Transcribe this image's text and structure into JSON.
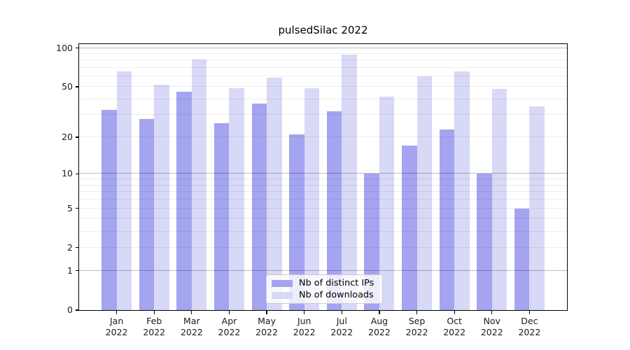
{
  "title": "pulsedSilac 2022",
  "chart_data": {
    "type": "bar",
    "title": "pulsedSilac 2022",
    "categories": [
      "Jan",
      "Feb",
      "Mar",
      "Apr",
      "May",
      "Jun",
      "Jul",
      "Aug",
      "Sep",
      "Oct",
      "Nov",
      "Dec"
    ],
    "year": "2022",
    "series": [
      {
        "name": "Nb of distinct IPs",
        "color": "#a4a4f0",
        "values": [
          33,
          28,
          46,
          26,
          37,
          21,
          32,
          10,
          17,
          23,
          10,
          5
        ]
      },
      {
        "name": "Nb of downloads",
        "color": "#d8d8f7",
        "values": [
          66,
          52,
          81,
          49,
          59,
          49,
          89,
          42,
          60,
          66,
          48,
          35
        ]
      }
    ],
    "xlabel": "",
    "ylabel": "",
    "yscale": "log1p",
    "ylim": [
      0,
      108
    ],
    "yticks": [
      0,
      1,
      2,
      5,
      10,
      20,
      50,
      100
    ],
    "grid_major": [
      1,
      10,
      100
    ],
    "grid_minor": [
      2,
      3,
      4,
      5,
      6,
      7,
      8,
      9,
      20,
      30,
      40,
      50,
      60,
      70,
      80,
      90
    ],
    "grid": "on",
    "legend_position": "lower center"
  }
}
